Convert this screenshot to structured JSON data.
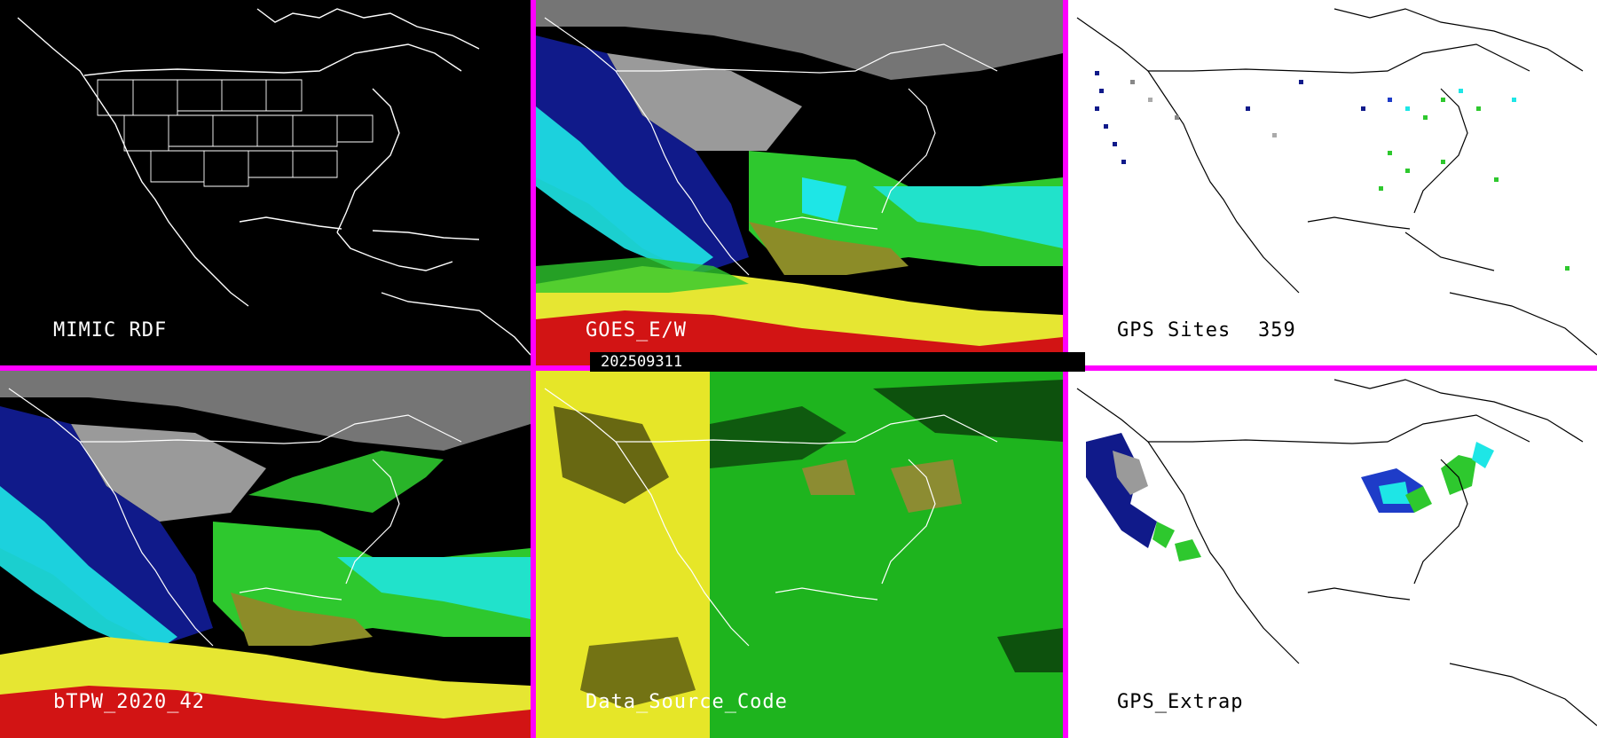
{
  "panels": [
    {
      "id": "mimic-rdf",
      "label": "MIMIC RDF",
      "background": "black"
    },
    {
      "id": "goes-ew",
      "label": "GOES_E/W",
      "background": "black"
    },
    {
      "id": "gps-sites",
      "label": "GPS Sites",
      "count": "359",
      "background": "white"
    },
    {
      "id": "btpw",
      "label": "bTPW_2020_42",
      "background": "black"
    },
    {
      "id": "data-source-code",
      "label": "Data_Source_Code",
      "background": "black"
    },
    {
      "id": "gps-extrap",
      "label": "GPS_Extrap",
      "background": "white"
    }
  ],
  "timestamp": "202509311",
  "colors": {
    "divider": "#ff00ff",
    "coast_on_dark": "#ffffff",
    "coast_on_light": "#000000",
    "tpw_gray": "#9a9a9a",
    "tpw_navy": "#101a8a",
    "tpw_blue": "#1e3cc8",
    "tpw_cyan": "#1ee6e6",
    "tpw_green": "#2ec82e",
    "tpw_olive": "#8c8c28",
    "tpw_yellow": "#e6e632",
    "tpw_red": "#d21414",
    "source_yellow": "#e6e628",
    "source_green": "#1eb41e",
    "source_olive": "#8c8c32"
  }
}
